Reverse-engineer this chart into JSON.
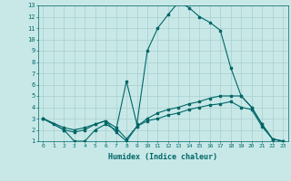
{
  "xlabel": "Humidex (Indice chaleur)",
  "xlim": [
    -0.5,
    23.5
  ],
  "ylim": [
    1,
    13
  ],
  "xticks": [
    0,
    1,
    2,
    3,
    4,
    5,
    6,
    7,
    8,
    9,
    10,
    11,
    12,
    13,
    14,
    15,
    16,
    17,
    18,
    19,
    20,
    21,
    22,
    23
  ],
  "yticks": [
    1,
    2,
    3,
    4,
    5,
    6,
    7,
    8,
    9,
    10,
    11,
    12,
    13
  ],
  "bg_color": "#c8e8e8",
  "grid_color": "#a8cece",
  "line_color": "#006666",
  "lines": [
    {
      "x": [
        0,
        1,
        2,
        3,
        4,
        5,
        6,
        7,
        8,
        9,
        10,
        11,
        12,
        13,
        14,
        15,
        16,
        17,
        18,
        19,
        20,
        21,
        22,
        23
      ],
      "y": [
        3,
        2.5,
        2,
        1,
        1,
        2,
        2.5,
        2,
        6.3,
        2.5,
        9,
        11,
        12.2,
        13.3,
        12.8,
        12,
        11.5,
        10.8,
        7.5,
        5,
        4,
        2.5,
        1.2,
        1
      ]
    },
    {
      "x": [
        0,
        2,
        3,
        4,
        5,
        6,
        7,
        8,
        9,
        10,
        11,
        12,
        13,
        14,
        15,
        16,
        17,
        18,
        19,
        20,
        21,
        22,
        23
      ],
      "y": [
        3,
        2,
        1.8,
        2,
        2.5,
        2.8,
        1.8,
        1,
        2.3,
        3,
        3.5,
        3.8,
        4,
        4.3,
        4.5,
        4.8,
        5,
        5,
        5,
        4,
        2.5,
        1.2,
        1
      ]
    },
    {
      "x": [
        0,
        2,
        3,
        4,
        5,
        6,
        7,
        8,
        9,
        10,
        11,
        12,
        13,
        14,
        15,
        16,
        17,
        18,
        19,
        20,
        21,
        22,
        23
      ],
      "y": [
        3,
        2.2,
        2,
        2.2,
        2.5,
        2.8,
        2.2,
        1.2,
        2.3,
        2.8,
        3,
        3.3,
        3.5,
        3.8,
        4,
        4.2,
        4.3,
        4.5,
        4,
        3.8,
        2.3,
        1.2,
        1
      ]
    }
  ]
}
